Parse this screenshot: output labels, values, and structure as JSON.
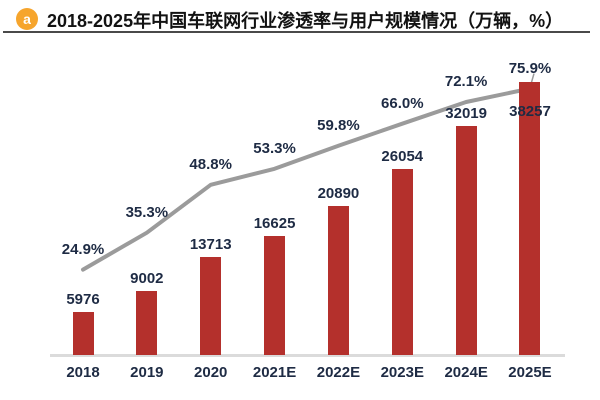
{
  "header": {
    "badge_label": "a",
    "title": "2018-2025年中国车联网行业渗透率与用户规模情况（万辆，%）"
  },
  "chart_data": {
    "type": "bar",
    "title": "2018-2025年中国车联网行业渗透率与用户规模情况（万辆，%）",
    "categories": [
      "2018",
      "2019",
      "2020",
      "2021E",
      "2022E",
      "2023E",
      "2024E",
      "2025E"
    ],
    "series": [
      {
        "type": "bar",
        "values": [
          5976,
          9002,
          13713,
          16625,
          20890,
          26054,
          32019,
          38257
        ]
      },
      {
        "type": "line",
        "values": [
          24.9,
          35.3,
          48.8,
          53.3,
          59.8,
          66.0,
          72.1,
          75.9
        ]
      }
    ],
    "bar_value_labels": [
      "5976",
      "9002",
      "13713",
      "16625",
      "20890",
      "26054",
      "32019",
      "38257"
    ],
    "line_point_labels": [
      "24.9%",
      "35.3%",
      "48.8%",
      "53.3%",
      "59.8%",
      "66.0%",
      "72.1%",
      "75.9%"
    ],
    "legend_position": "none",
    "grid": false,
    "colors": {
      "bar": "#B4302C",
      "line": "#9B9B9B",
      "axis": "#DBDBDB",
      "data_label": "#1E2B44",
      "badge": "#F6A52D"
    }
  }
}
